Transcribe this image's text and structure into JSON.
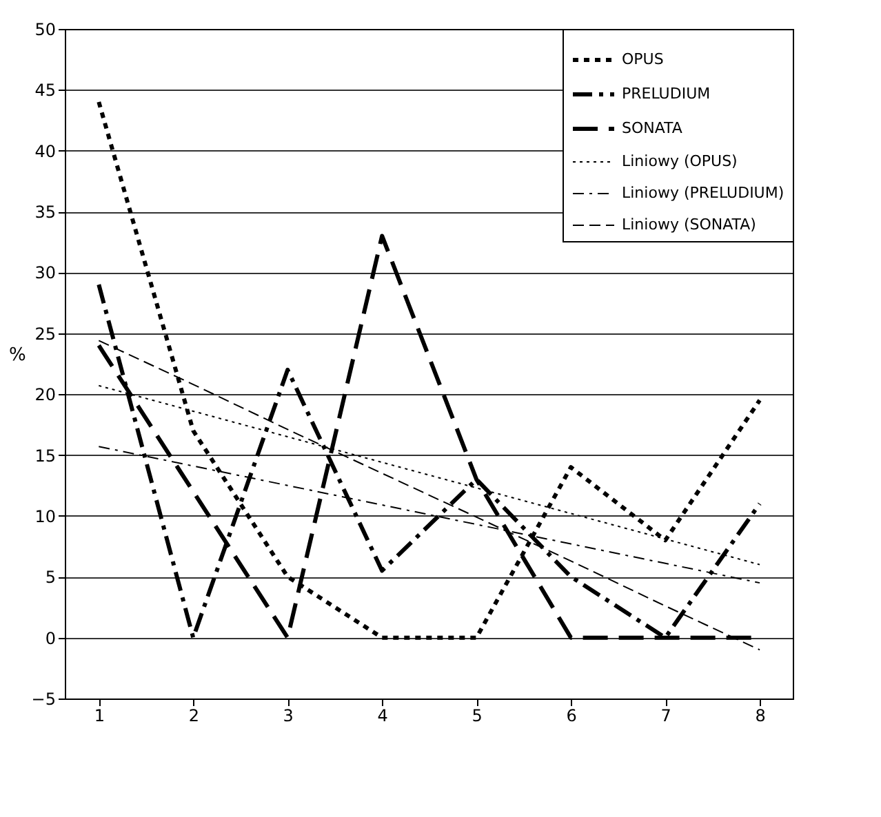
{
  "chart_data": {
    "type": "line",
    "ylabel": "%",
    "x": [
      1,
      2,
      3,
      4,
      5,
      6,
      7,
      8
    ],
    "xlim": [
      0.64,
      8.35
    ],
    "xticks": [
      1,
      2,
      3,
      4,
      5,
      6,
      7,
      8
    ],
    "ylim": [
      -5,
      50
    ],
    "yticks": [
      -5,
      0,
      5,
      10,
      15,
      20,
      25,
      30,
      35,
      40,
      45,
      50
    ],
    "grid": "y",
    "legend": "top right",
    "marker": "none",
    "series": [
      {
        "name": "OPUS",
        "color": "#000000",
        "line_style": "dotted",
        "values": [
          44,
          17,
          5,
          0,
          0,
          14,
          8,
          19.5
        ]
      },
      {
        "name": "PRELUDIUM",
        "color": "#000000",
        "line_style": "dashed",
        "values": [
          29,
          0,
          22,
          5.5,
          13,
          5,
          0,
          11
        ]
      },
      {
        "name": "SONATA",
        "color": "#000000",
        "line_style": "dashed",
        "values": [
          24,
          12,
          0,
          33,
          13,
          0,
          0,
          0
        ]
      },
      {
        "name": "Liniowy (OPUS)",
        "color": "#000000",
        "line_style": "dotted",
        "x": [
          1,
          2,
          3,
          4,
          5,
          6,
          7,
          8
        ],
        "values": [
          20.7,
          18.6,
          16.5,
          14.4,
          12.3,
          10.2,
          8.1,
          6.0
        ]
      },
      {
        "name": "Liniowy (PRELUDIUM)",
        "color": "#000000",
        "line_style": "dashed",
        "x": [
          1,
          2,
          3,
          4,
          5,
          6,
          7,
          8
        ],
        "values": [
          15.7,
          14.1,
          12.5,
          10.9,
          9.3,
          7.7,
          6.1,
          4.5
        ]
      },
      {
        "name": "Liniowy (SONATA)",
        "color": "#000000",
        "line_style": "dashed",
        "x": [
          1,
          2,
          3,
          4,
          5,
          6,
          7,
          8
        ],
        "values": [
          24.4,
          20.8,
          17.1,
          13.5,
          9.9,
          6.3,
          2.6,
          -1.0
        ]
      }
    ]
  }
}
